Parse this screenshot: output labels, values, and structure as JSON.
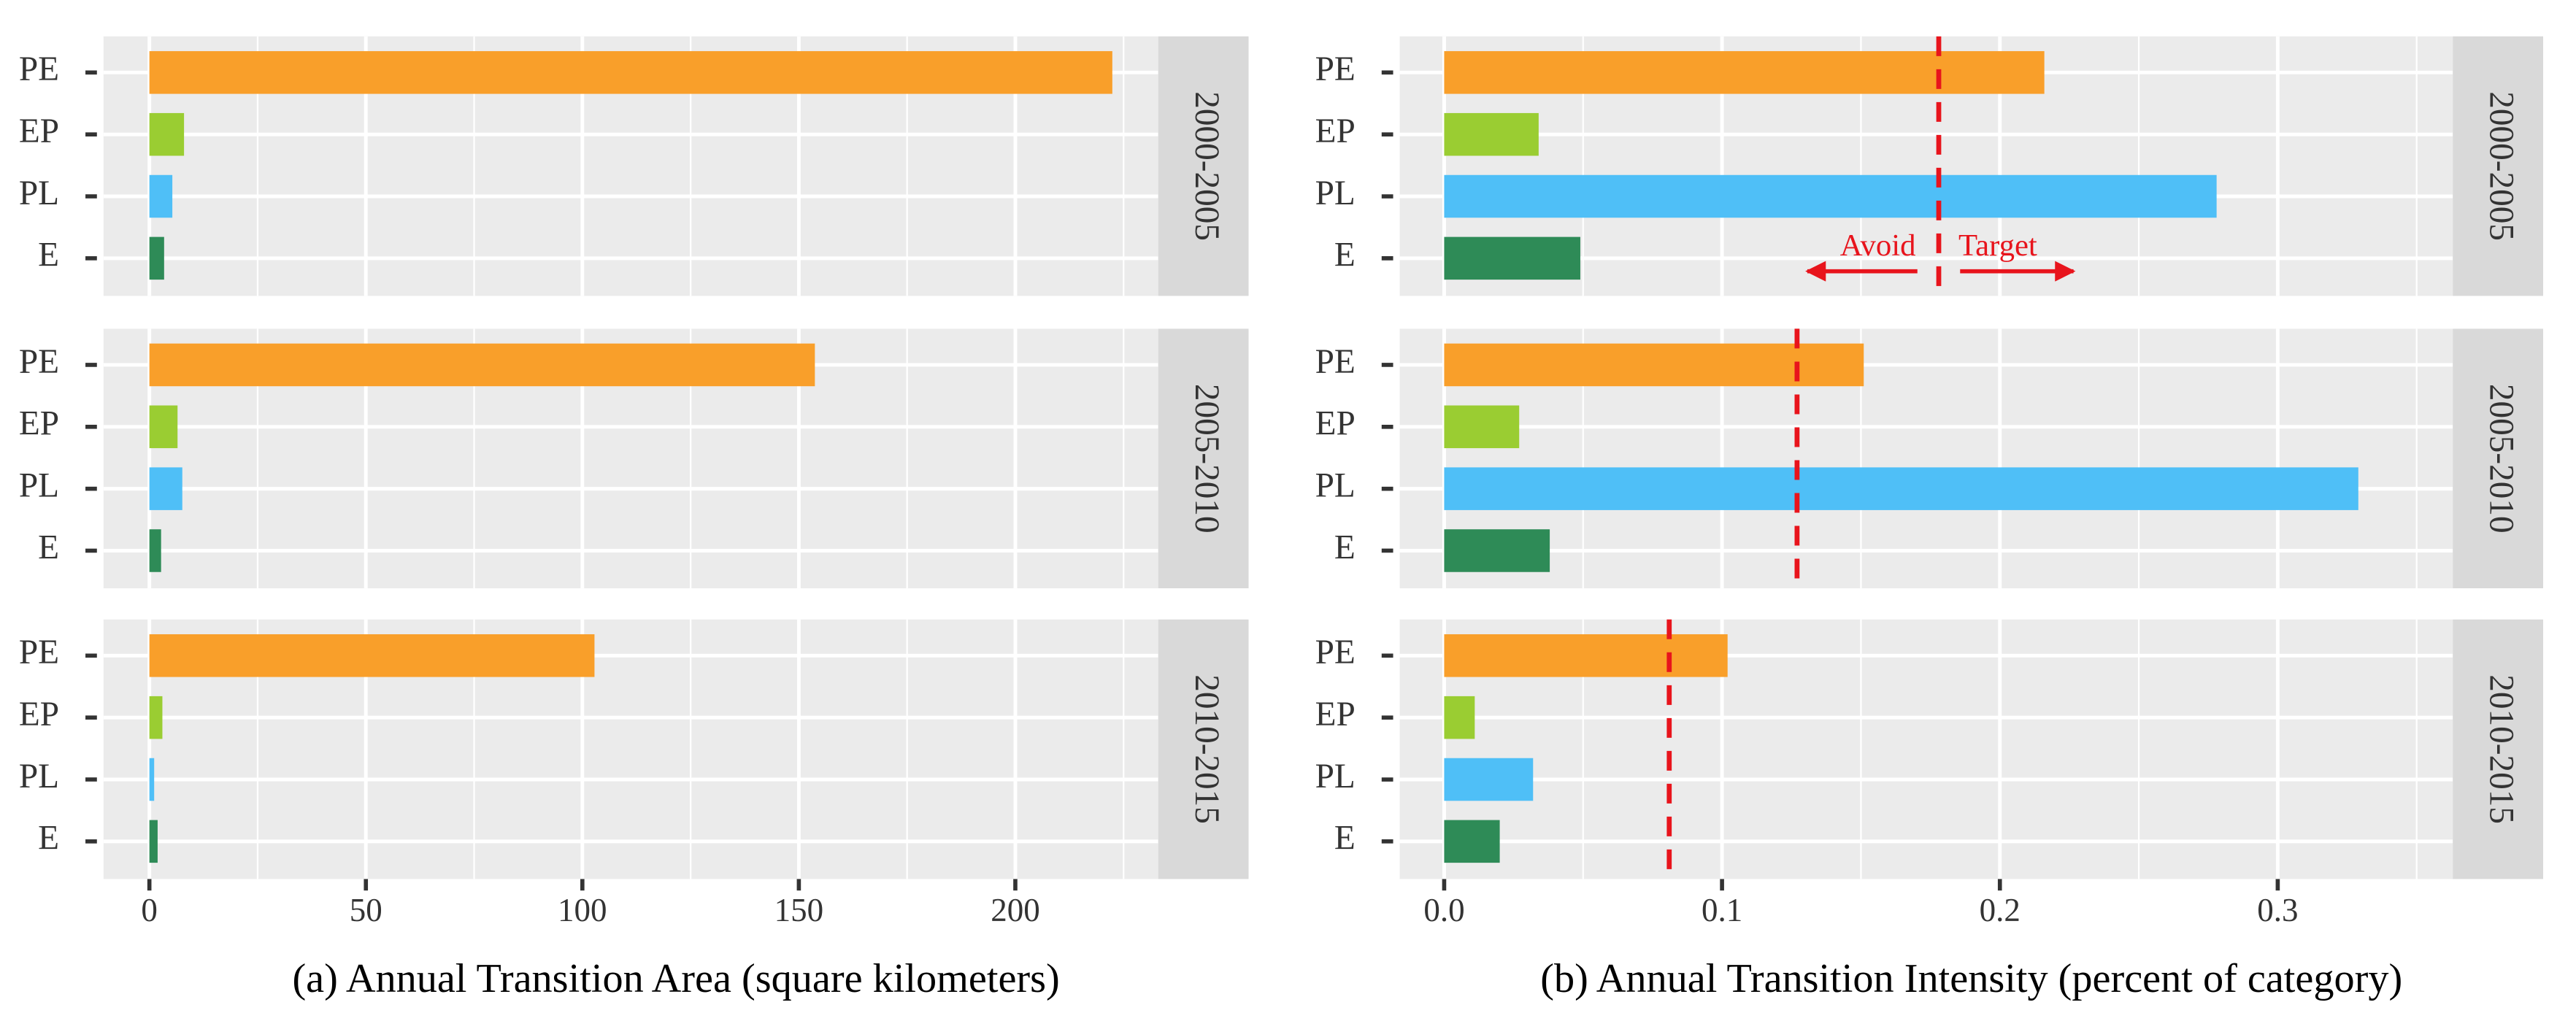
{
  "chart_data": [
    {
      "type": "bar",
      "orientation": "horizontal",
      "xlabel": "(a) Annual Transition Area (square kilometers)",
      "categories": [
        "PE",
        "EP",
        "PL",
        "E"
      ],
      "colors": [
        "#f99f2a",
        "#9acd32",
        "#4fbff7",
        "#2e8b57"
      ],
      "xlim": [
        -10.6,
        233
      ],
      "xticks": [
        0,
        50,
        100,
        150,
        200
      ],
      "grid": true,
      "facets": [
        {
          "label": "2000-2005",
          "values": [
            222.4,
            8,
            5.3,
            3.4
          ]
        },
        {
          "label": "2005-2010",
          "values": [
            153.7,
            6.5,
            7.6,
            2.7
          ]
        },
        {
          "label": "2010-2015",
          "values": [
            102.8,
            3,
            1.1,
            1.9
          ]
        }
      ]
    },
    {
      "type": "bar",
      "orientation": "horizontal",
      "xlabel": "(b) Annual Transition Intensity (percent of category)",
      "categories": [
        "PE",
        "EP",
        "PL",
        "E"
      ],
      "colors": [
        "#f99f2a",
        "#9acd32",
        "#4fbff7",
        "#2e8b57"
      ],
      "xlim": [
        -0.016,
        0.363
      ],
      "xticks": [
        {
          "value": 0,
          "label": "0.0"
        },
        0.1,
        0.2,
        0.3
      ],
      "grid": true,
      "reference_color": "#e8141c",
      "annotations": [
        "Avoid",
        "Target"
      ],
      "facets": [
        {
          "label": "2000-2005",
          "values": [
            0.216,
            0.034,
            0.278,
            0.049
          ],
          "reference_line": 0.178
        },
        {
          "label": "2005-2010",
          "values": [
            0.151,
            0.027,
            0.329,
            0.038
          ],
          "reference_line": 0.127
        },
        {
          "label": "2010-2015",
          "values": [
            0.102,
            0.011,
            0.032,
            0.02
          ],
          "reference_line": 0.081
        }
      ]
    }
  ]
}
